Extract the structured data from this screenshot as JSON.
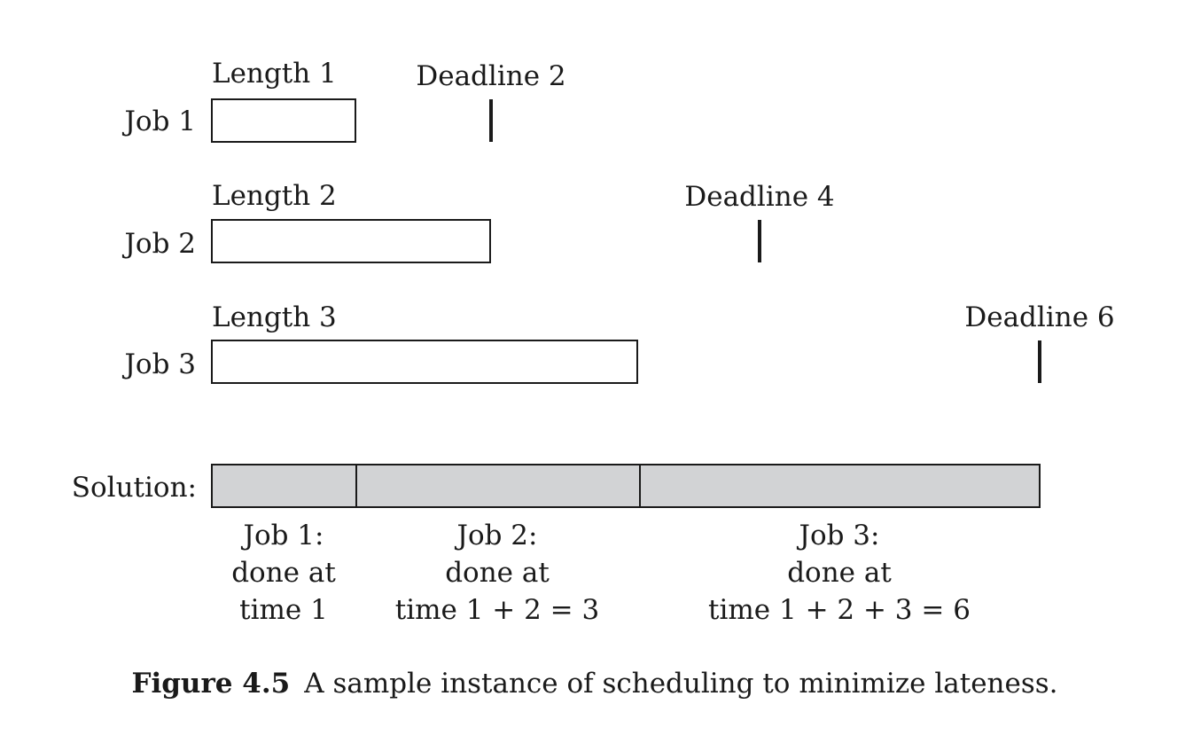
{
  "jobs": [
    {
      "label": "Job 1",
      "length_label": "Length 1",
      "deadline_label": "Deadline 2",
      "length": 1,
      "deadline": 2
    },
    {
      "label": "Job 2",
      "length_label": "Length 2",
      "deadline_label": "Deadline 4",
      "length": 2,
      "deadline": 4
    },
    {
      "label": "Job 3",
      "length_label": "Length 3",
      "deadline_label": "Deadline 6",
      "length": 3,
      "deadline": 6
    }
  ],
  "solution": {
    "label": "Solution:",
    "fill_color": "#d2d3d5",
    "segments": [
      {
        "lines": [
          "Job 1:",
          "done at",
          "time 1"
        ]
      },
      {
        "lines": [
          "Job 2:",
          "done at",
          "time 1 + 2 = 3"
        ]
      },
      {
        "lines": [
          "Job 3:",
          "done at",
          "time 1 + 2 + 3 = 6"
        ]
      }
    ]
  },
  "caption": {
    "figure_label": "Figure 4.5",
    "text": "A sample instance of scheduling to minimize lateness."
  }
}
